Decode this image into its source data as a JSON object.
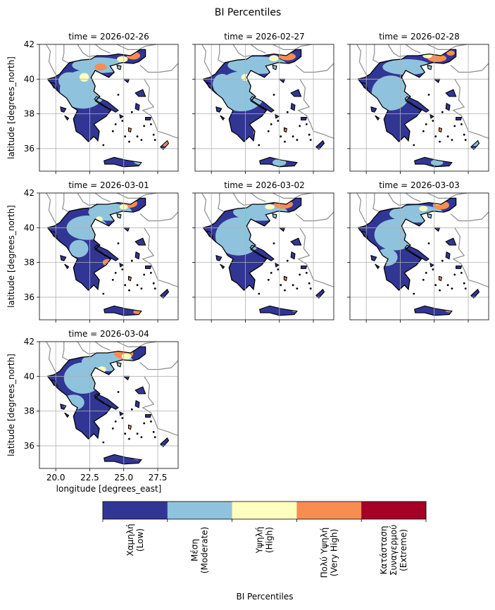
{
  "chart_data": {
    "type": "heatmap",
    "title": "BI Percentiles",
    "panel_label_prefix": "time = ",
    "panels": [
      {
        "time": "2026-02-26"
      },
      {
        "time": "2026-02-27"
      },
      {
        "time": "2026-02-28"
      },
      {
        "time": "2026-03-01"
      },
      {
        "time": "2026-03-02"
      },
      {
        "time": "2026-03-03"
      },
      {
        "time": "2026-03-04"
      }
    ],
    "xlabel": "longitude [degrees_east]",
    "ylabel": "latitude [degrees_north]",
    "xlim": [
      18.8,
      29.0
    ],
    "ylim": [
      34.7,
      42.0
    ],
    "xticks": [
      20.0,
      22.5,
      25.0,
      27.5
    ],
    "xtick_labels": [
      "20.0",
      "22.5",
      "25.0",
      "27.5"
    ],
    "yticks": [
      36,
      38,
      40,
      42
    ],
    "ytick_labels": [
      "36",
      "38",
      "40",
      "42"
    ],
    "grid": true,
    "colorbar": {
      "label": "BI Percentiles",
      "categories": [
        {
          "lines": [
            "Χαμηλή",
            "(Low)"
          ],
          "color": "#313695"
        },
        {
          "lines": [
            "Μέση",
            "(Moderate)"
          ],
          "color": "#8fc3dd"
        },
        {
          "lines": [
            "Υψηλή",
            "(High)"
          ],
          "color": "#ffffbf"
        },
        {
          "lines": [
            "Πολύ Υψηλή",
            "(Very High)"
          ],
          "color": "#f88d52"
        },
        {
          "lines": [
            "Κατάσταση",
            "Συναγερμού",
            "(Extreme)"
          ],
          "color": "#a50026"
        }
      ]
    }
  }
}
